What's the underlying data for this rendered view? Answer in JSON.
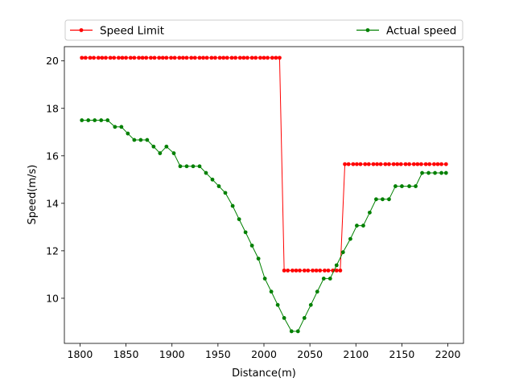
{
  "chart_data": {
    "type": "line",
    "xlabel": "Distance(m)",
    "ylabel": "Speed(m/s)",
    "xlim": [
      1783,
      2217
    ],
    "ylim": [
      8.1,
      20.6
    ],
    "x_ticks": [
      1800,
      1850,
      1900,
      1950,
      2000,
      2050,
      2100,
      2150,
      2200
    ],
    "y_ticks": [
      10,
      12,
      14,
      16,
      18,
      20
    ],
    "grid": false,
    "legend_position": "top",
    "series": [
      {
        "name": "Speed Limit",
        "color": "#ff0000",
        "x": [
          1802,
          1806,
          1811,
          1815,
          1820,
          1824,
          1828,
          1833,
          1837,
          1842,
          1846,
          1850,
          1855,
          1859,
          1864,
          1868,
          1872,
          1877,
          1881,
          1886,
          1890,
          1894,
          1899,
          1903,
          1908,
          1912,
          1916,
          1921,
          1925,
          1930,
          1934,
          1938,
          1943,
          1947,
          1952,
          1956,
          1960,
          1965,
          1969,
          1974,
          1978,
          1982,
          1987,
          1991,
          1996,
          2000,
          2004,
          2009,
          2013,
          2017,
          2022,
          2026,
          2031,
          2035,
          2039,
          2044,
          2048,
          2053,
          2057,
          2061,
          2066,
          2070,
          2075,
          2079,
          2083,
          2088,
          2092,
          2097,
          2101,
          2105,
          2110,
          2114,
          2119,
          2123,
          2127,
          2132,
          2136,
          2141,
          2145,
          2149,
          2154,
          2158,
          2163,
          2167,
          2171,
          2176,
          2180,
          2185,
          2189,
          2193,
          2198
        ],
        "values": [
          20.13,
          20.13,
          20.13,
          20.13,
          20.13,
          20.13,
          20.13,
          20.13,
          20.13,
          20.13,
          20.13,
          20.13,
          20.13,
          20.13,
          20.13,
          20.13,
          20.13,
          20.13,
          20.13,
          20.13,
          20.13,
          20.13,
          20.13,
          20.13,
          20.13,
          20.13,
          20.13,
          20.13,
          20.13,
          20.13,
          20.13,
          20.13,
          20.13,
          20.13,
          20.13,
          20.13,
          20.13,
          20.13,
          20.13,
          20.13,
          20.13,
          20.13,
          20.13,
          20.13,
          20.13,
          20.13,
          20.13,
          20.13,
          20.13,
          20.13,
          11.17,
          11.17,
          11.17,
          11.17,
          11.17,
          11.17,
          11.17,
          11.17,
          11.17,
          11.17,
          11.17,
          11.17,
          11.17,
          11.17,
          11.17,
          15.65,
          15.65,
          15.65,
          15.65,
          15.65,
          15.65,
          15.65,
          15.65,
          15.65,
          15.65,
          15.65,
          15.65,
          15.65,
          15.65,
          15.65,
          15.65,
          15.65,
          15.65,
          15.65,
          15.65,
          15.65,
          15.65,
          15.65,
          15.65,
          15.65,
          15.65
        ]
      },
      {
        "name": "Actual speed",
        "color": "#008000",
        "x": [
          1802,
          1809,
          1816,
          1823,
          1830,
          1838,
          1845,
          1852,
          1859,
          1866,
          1873,
          1880,
          1887,
          1894,
          1902,
          1909,
          1916,
          1923,
          1930,
          1937,
          1944,
          1951,
          1958,
          1966,
          1973,
          1980,
          1987,
          1994,
          2001,
          2008,
          2015,
          2022,
          2030,
          2037,
          2044,
          2051,
          2058,
          2065,
          2072,
          2079,
          2086,
          2094,
          2101,
          2108,
          2115,
          2122,
          2129,
          2136,
          2143,
          2150,
          2158,
          2165,
          2172,
          2179,
          2186,
          2193,
          2198
        ],
        "values": [
          17.5,
          17.5,
          17.5,
          17.5,
          17.5,
          17.22,
          17.22,
          16.94,
          16.67,
          16.67,
          16.67,
          16.39,
          16.11,
          16.39,
          16.11,
          15.56,
          15.56,
          15.56,
          15.56,
          15.28,
          15.0,
          14.72,
          14.44,
          13.89,
          13.33,
          12.78,
          12.22,
          11.67,
          10.83,
          10.28,
          9.72,
          9.17,
          8.61,
          8.61,
          9.17,
          9.72,
          10.28,
          10.83,
          10.83,
          11.39,
          11.94,
          12.5,
          13.06,
          13.06,
          13.61,
          14.17,
          14.17,
          14.17,
          14.72,
          14.72,
          14.72,
          14.72,
          15.28,
          15.28,
          15.28,
          15.28,
          15.28
        ]
      }
    ]
  }
}
